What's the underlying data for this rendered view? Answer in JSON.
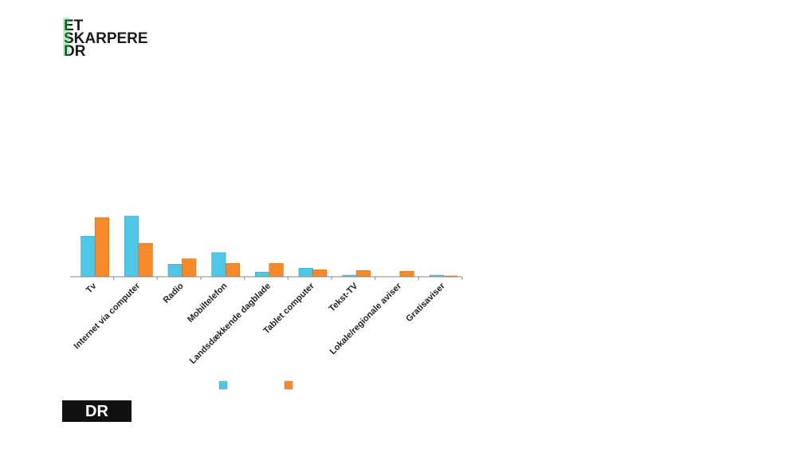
{
  "logo": {
    "lines": [
      "ET",
      "SKARPERE",
      "DR"
    ]
  },
  "footer_logo": "DR",
  "chart_data": {
    "type": "bar",
    "categories": [
      "Tv",
      "Internet via computer",
      "Radio",
      "Mobiltelefon",
      "Landsdækkende dagblade",
      "Tablet computer",
      "Tekst-TV",
      "Lokale/regionale aviser",
      "Gratisaviser"
    ],
    "series": [
      {
        "color": "#4fc8e8",
        "values": [
          52,
          78,
          16,
          31,
          6,
          11,
          2,
          0,
          2
        ]
      },
      {
        "color": "#f68a2a",
        "values": [
          76,
          43,
          23,
          17,
          17,
          9,
          8,
          7,
          1
        ]
      }
    ],
    "ylim": [
      0,
      80
    ]
  }
}
